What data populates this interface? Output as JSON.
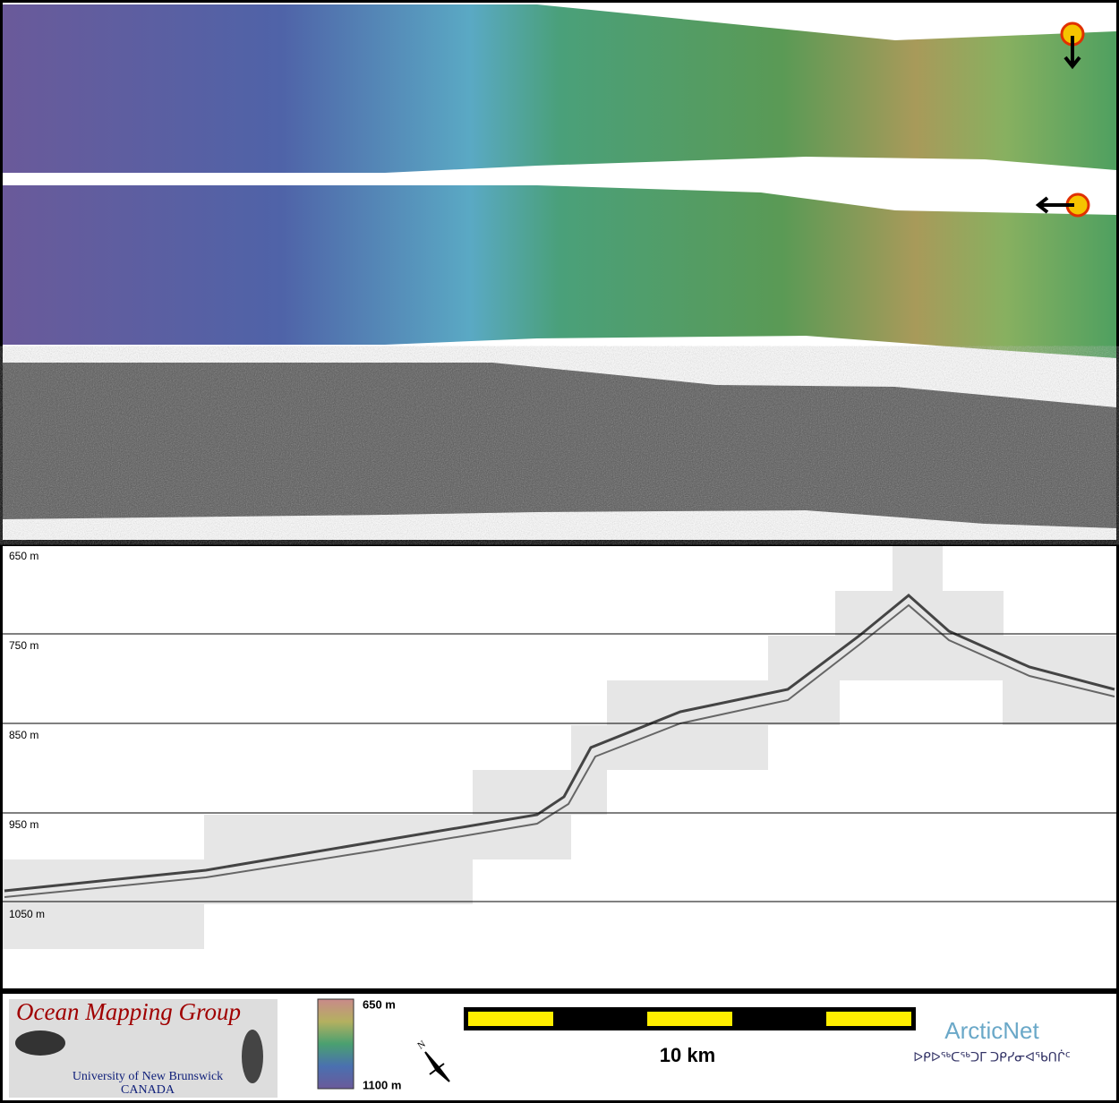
{
  "profile": {
    "depth_labels": [
      "650 m",
      "750 m",
      "850 m",
      "950 m",
      "1050 m"
    ]
  },
  "footer": {
    "logo": {
      "title": "Ocean Mapping Group",
      "university": "University of New Brunswick",
      "country": "CANADA"
    },
    "colorbar": {
      "top": "650 m",
      "bottom": "1100 m"
    },
    "north": "N",
    "scale_bar": "10 km",
    "partner": {
      "name": "ArcticNet",
      "syllabics": "ᐅᑭᐅᖅᑕᖅᑐᒥ ᑐᑭᓯᓂᐊᖃᑎᒌᑦ"
    }
  }
}
